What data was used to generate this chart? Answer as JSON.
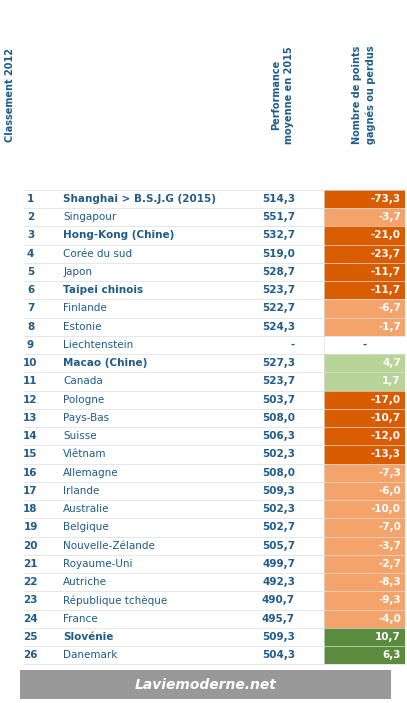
{
  "rows": [
    {
      "rank": 1,
      "country": "Shanghai > B.S.J.G (2015)",
      "perf": "514,3",
      "points": "-73,3",
      "bold": true
    },
    {
      "rank": 2,
      "country": "Singapour",
      "perf": "551,7",
      "points": "-3,7",
      "bold": false
    },
    {
      "rank": 3,
      "country": "Hong-Kong (Chine)",
      "perf": "532,7",
      "points": "-21,0",
      "bold": true
    },
    {
      "rank": 4,
      "country": "Corée du sud",
      "perf": "519,0",
      "points": "-23,7",
      "bold": false
    },
    {
      "rank": 5,
      "country": "Japon",
      "perf": "528,7",
      "points": "-11,7",
      "bold": false
    },
    {
      "rank": 6,
      "country": "Taipei chinois",
      "perf": "523,7",
      "points": "-11,7",
      "bold": true
    },
    {
      "rank": 7,
      "country": "Finlande",
      "perf": "522,7",
      "points": "-6,7",
      "bold": false
    },
    {
      "rank": 8,
      "country": "Estonie",
      "perf": "524,3",
      "points": "-1,7",
      "bold": false
    },
    {
      "rank": 9,
      "country": "Liechtenstein",
      "perf": "-",
      "points": "-",
      "bold": false
    },
    {
      "rank": 10,
      "country": "Macao (Chine)",
      "perf": "527,3",
      "points": "4,7",
      "bold": true
    },
    {
      "rank": 11,
      "country": "Canada",
      "perf": "523,7",
      "points": "1,7",
      "bold": false
    },
    {
      "rank": 12,
      "country": "Pologne",
      "perf": "503,7",
      "points": "-17,0",
      "bold": false
    },
    {
      "rank": 13,
      "country": "Pays-Bas",
      "perf": "508,0",
      "points": "-10,7",
      "bold": false
    },
    {
      "rank": 14,
      "country": "Suisse",
      "perf": "506,3",
      "points": "-12,0",
      "bold": false
    },
    {
      "rank": 15,
      "country": "Viêtnam",
      "perf": "502,3",
      "points": "-13,3",
      "bold": false
    },
    {
      "rank": 16,
      "country": "Allemagne",
      "perf": "508,0",
      "points": "-7,3",
      "bold": false
    },
    {
      "rank": 17,
      "country": "Irlande",
      "perf": "509,3",
      "points": "-6,0",
      "bold": false
    },
    {
      "rank": 18,
      "country": "Australie",
      "perf": "502,3",
      "points": "-10,0",
      "bold": false
    },
    {
      "rank": 19,
      "country": "Belgique",
      "perf": "502,7",
      "points": "-7,0",
      "bold": false
    },
    {
      "rank": 20,
      "country": "Nouvelle-Zélande",
      "perf": "505,7",
      "points": "-3,7",
      "bold": false
    },
    {
      "rank": 21,
      "country": "Royaume-Uni",
      "perf": "499,7",
      "points": "-2,7",
      "bold": false
    },
    {
      "rank": 22,
      "country": "Autriche",
      "perf": "492,3",
      "points": "-8,3",
      "bold": false
    },
    {
      "rank": 23,
      "country": "République tchèque",
      "perf": "490,7",
      "points": "-9,3",
      "bold": false
    },
    {
      "rank": 24,
      "country": "France",
      "perf": "495,7",
      "points": "-4,0",
      "bold": false
    },
    {
      "rank": 25,
      "country": "Slovénie",
      "perf": "509,3",
      "points": "10,7",
      "bold": true
    },
    {
      "rank": 26,
      "country": "Danemark",
      "perf": "504,3",
      "points": "6,3",
      "bold": false
    }
  ],
  "col_header_rank": "Classement 2012",
  "col_header_perf": "Performance\nmoyenne en 2015",
  "col_header_points": "Nombre de points\ngagnés ou perdus",
  "footer": "Laviemoderne.net",
  "bg_color": "#ffffff",
  "header_text_color": "#1F5C8B",
  "rank_text_color": "#1F5C8B",
  "country_text_color": "#1F5C8B",
  "perf_text_color": "#1F5C8B",
  "color_dark_orange": "#D95D00",
  "color_light_orange": "#F4A46A",
  "color_dark_green": "#5B8C3E",
  "color_light_green": "#B8D498",
  "footer_bg": "#999999",
  "separator_color": "#dddddd"
}
